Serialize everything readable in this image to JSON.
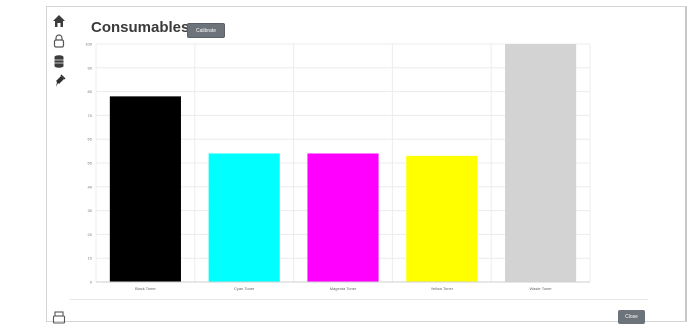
{
  "page": {
    "title": "Consumables",
    "calibrate_label": "Calibrate",
    "close_label": "Close"
  },
  "sidebar": {
    "items": [
      {
        "icon": "home-icon"
      },
      {
        "icon": "lock-icon"
      },
      {
        "icon": "database-icon"
      },
      {
        "icon": "plug-icon"
      },
      {
        "icon": "printer-icon"
      }
    ]
  },
  "chart_data": {
    "type": "bar",
    "categories": [
      "Black Toner",
      "Cyan Toner",
      "Magenta Toner",
      "Yellow Toner",
      "Waste Toner"
    ],
    "values": [
      78,
      54,
      54,
      53,
      100
    ],
    "colors": [
      "#000000",
      "#00ffff",
      "#ff00ff",
      "#ffff00",
      "#d3d3d3"
    ],
    "ylim": [
      0,
      100
    ],
    "yticks": [
      0,
      10,
      20,
      30,
      40,
      50,
      60,
      70,
      80,
      90,
      100
    ],
    "grid": true,
    "title": "",
    "xlabel": "",
    "ylabel": ""
  }
}
